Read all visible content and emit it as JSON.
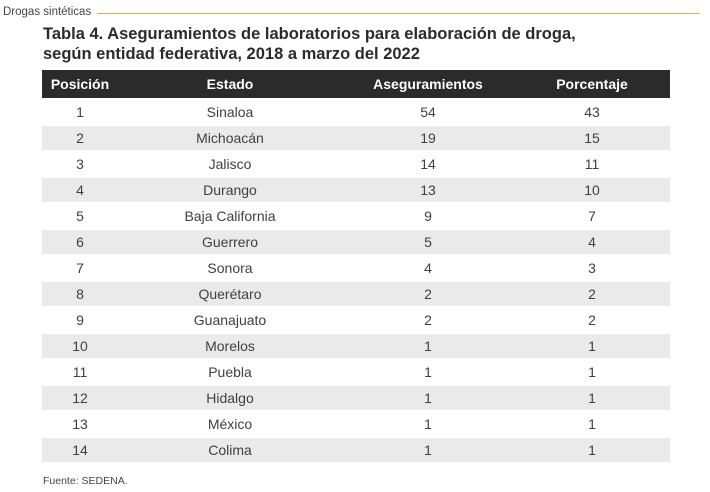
{
  "header": {
    "section": "Drogas sintéticas"
  },
  "title": {
    "line1": "Tabla 4. Aseguramientos de laboratorios para elaboración de droga,",
    "line2": "según entidad federativa, 2018 a marzo del 2022"
  },
  "table": {
    "columns": [
      "Posición",
      "Estado",
      "Aseguramientos",
      "Porcentaje"
    ],
    "rows": [
      [
        "1",
        "Sinaloa",
        "54",
        "43"
      ],
      [
        "2",
        "Michoacán",
        "19",
        "15"
      ],
      [
        "3",
        "Jalisco",
        "14",
        "11"
      ],
      [
        "4",
        "Durango",
        "13",
        "10"
      ],
      [
        "5",
        "Baja California",
        "9",
        "7"
      ],
      [
        "6",
        "Guerrero",
        "5",
        "4"
      ],
      [
        "7",
        "Sonora",
        "4",
        "3"
      ],
      [
        "8",
        "Querétaro",
        "2",
        "2"
      ],
      [
        "9",
        "Guanajuato",
        "2",
        "2"
      ],
      [
        "10",
        "Morelos",
        "1",
        "1"
      ],
      [
        "11",
        "Puebla",
        "1",
        "1"
      ],
      [
        "12",
        "Hidalgo",
        "1",
        "1"
      ],
      [
        "13",
        "México",
        "1",
        "1"
      ],
      [
        "14",
        "Colima",
        "1",
        "1"
      ]
    ]
  },
  "source": "Fuente: SEDENA.",
  "colors": {
    "header_bg": "#2b2b2b",
    "stripe": "#eaeaea",
    "accent_rule": "#e3b04b"
  }
}
